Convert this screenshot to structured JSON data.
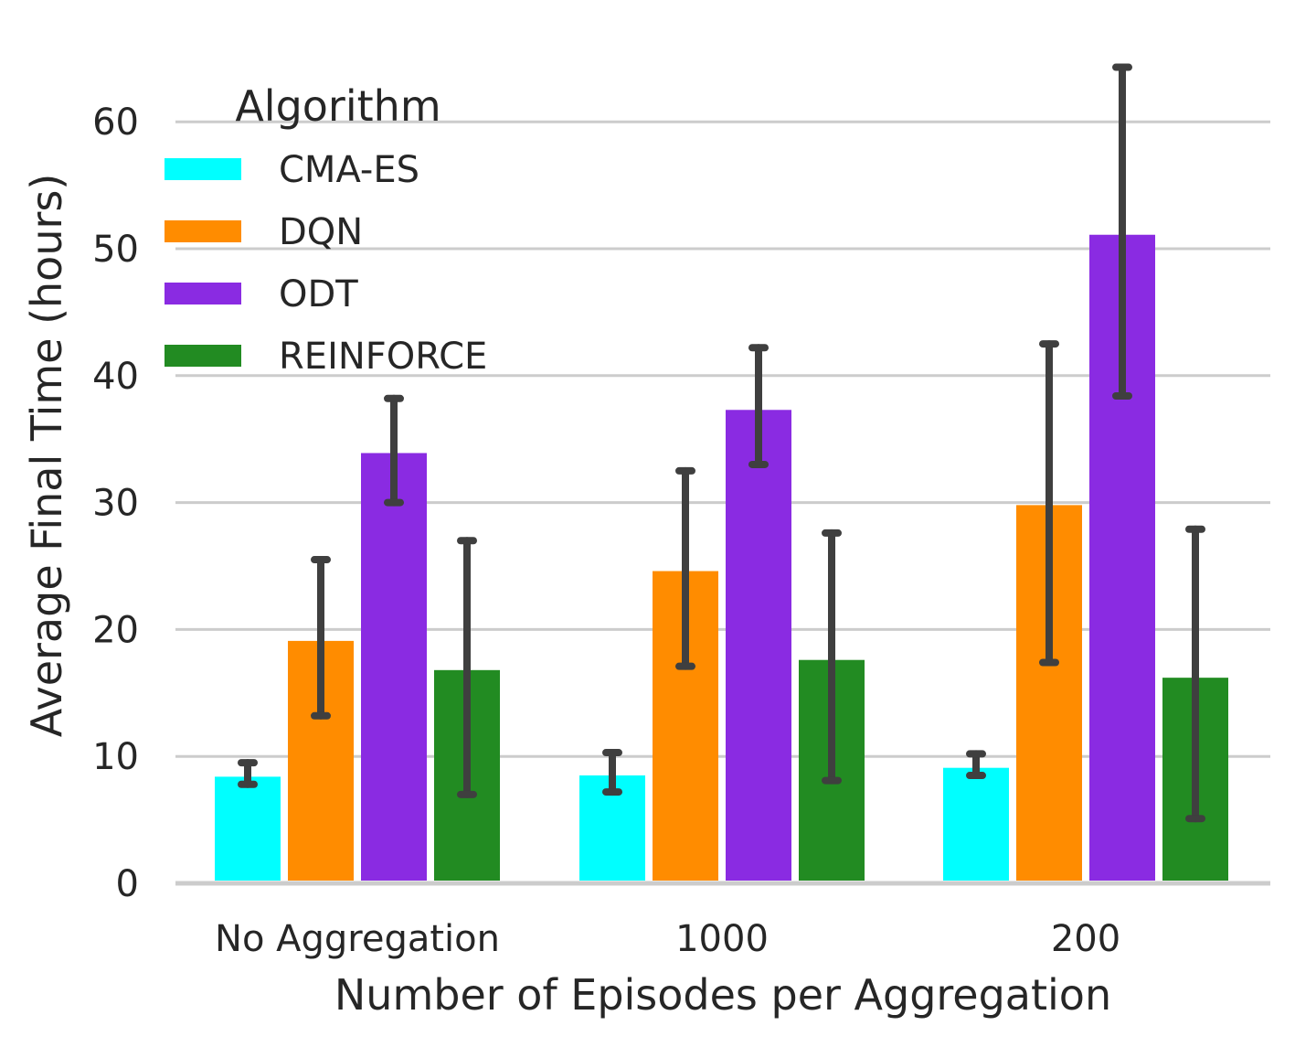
{
  "chart_data": {
    "type": "bar",
    "xlabel": "Number of Episodes per Aggregation",
    "ylabel": "Average Final Time (hours)",
    "categories": [
      "No Aggregation",
      "1000",
      "200"
    ],
    "ylim": [
      0,
      65
    ],
    "yticks": [
      0,
      10,
      20,
      30,
      40,
      50,
      60
    ],
    "grid": "horizontal",
    "legend": {
      "title": "Algorithm",
      "placement": "top-left"
    },
    "series": [
      {
        "name": "CMA-ES",
        "color": "#00ffff",
        "values": [
          8.4,
          8.5,
          9.1
        ],
        "err_low": [
          7.8,
          7.2,
          8.5
        ],
        "err_high": [
          9.5,
          10.3,
          10.2
        ]
      },
      {
        "name": "DQN",
        "color": "#ff8c00",
        "values": [
          19.1,
          24.6,
          29.8
        ],
        "err_low": [
          13.2,
          17.1,
          17.4
        ],
        "err_high": [
          25.5,
          32.5,
          42.5
        ]
      },
      {
        "name": "ODT",
        "color": "#8a2be2",
        "values": [
          33.9,
          37.3,
          51.1
        ],
        "err_low": [
          30.0,
          33.0,
          38.4
        ],
        "err_high": [
          38.2,
          42.2,
          64.3
        ]
      },
      {
        "name": "REINFORCE",
        "color": "#228b22",
        "values": [
          16.8,
          17.6,
          16.2
        ],
        "err_low": [
          7.0,
          8.1,
          5.1
        ],
        "err_high": [
          27.0,
          27.6,
          27.9
        ]
      }
    ]
  }
}
